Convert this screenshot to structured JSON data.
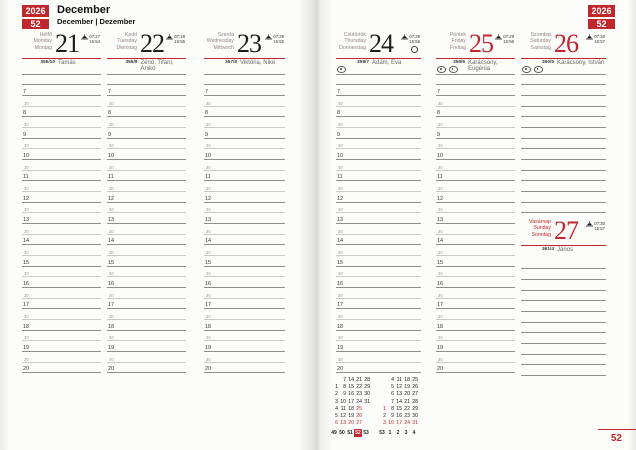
{
  "header": {
    "year": "2026",
    "week": "52",
    "month": "December",
    "month_subtitle": "December | Dezember"
  },
  "page_number": "52",
  "days": [
    {
      "name_hu": "Hétfő",
      "name_en": "Monday",
      "name_de": "Montag",
      "date": "21",
      "sunrise": "07:27",
      "sunset": "15:54",
      "day_of_year": "355/10",
      "namedays": "Tamás",
      "holiday": false
    },
    {
      "name_hu": "Kedd",
      "name_en": "Tuesday",
      "name_de": "Dienstag",
      "date": "22",
      "sunrise": "07:28",
      "sunset": "15:55",
      "day_of_year": "356/9",
      "namedays": "Zénó, Tifani, Anikó",
      "holiday": false
    },
    {
      "name_hu": "Szerda",
      "name_en": "Wednesday",
      "name_de": "Mittwoch",
      "date": "23",
      "sunrise": "07:29",
      "sunset": "15:55",
      "day_of_year": "357/8",
      "namedays": "Viktória, Niké",
      "holiday": false
    },
    {
      "name_hu": "Csütörtök",
      "name_en": "Thursday",
      "name_de": "Donnerstag",
      "date": "24",
      "sunrise": "07:29",
      "sunset": "15:56",
      "day_of_year": "358/7",
      "namedays": "Ádám, Éva",
      "holiday": false,
      "moon_phase": "full"
    },
    {
      "name_hu": "Péntek",
      "name_en": "Friday",
      "name_de": "Freitag",
      "date": "25",
      "sunrise": "07:29",
      "sunset": "15:56",
      "day_of_year": "359/6",
      "namedays": "Karácsony, Eugénia",
      "holiday": true
    },
    {
      "name_hu": "Szombat",
      "name_en": "Saturday",
      "name_de": "Samstag",
      "date": "26",
      "sunrise": "07:30",
      "sunset": "15:57",
      "day_of_year": "360/5",
      "namedays": "Karácsony, István",
      "holiday": true
    },
    {
      "name_hu": "Vasárnap",
      "name_en": "Sunday",
      "name_de": "Sonntag",
      "date": "27",
      "sunrise": "07:30",
      "sunset": "15:57",
      "day_of_year": "361/4",
      "namedays": "János",
      "holiday": true
    }
  ],
  "schedule": {
    "hours": [
      7,
      8,
      9,
      10,
      11,
      12,
      13,
      14,
      15,
      16,
      17,
      18,
      19,
      20
    ],
    "half_label": "30"
  },
  "mini_calendar": {
    "current_week": "52",
    "months": [
      {
        "rows": [
          [
            "",
            "7",
            "14",
            "21",
            "28"
          ],
          [
            "1",
            "8",
            "15",
            "22",
            "29"
          ],
          [
            "2",
            "9",
            "16",
            "23",
            "30"
          ],
          [
            "3",
            "10",
            "17",
            "24",
            "31"
          ],
          [
            "4",
            "11",
            "18",
            "25",
            ""
          ],
          [
            "5",
            "12",
            "19",
            "26",
            ""
          ],
          [
            "6",
            "13",
            "20",
            "27",
            ""
          ]
        ],
        "week_numbers": [
          "49",
          "50",
          "51",
          "52",
          "53"
        ],
        "red_days": [
          "6",
          "13",
          "20",
          "25",
          "26",
          "27"
        ]
      },
      {
        "rows": [
          [
            "",
            "4",
            "11",
            "18",
            "25"
          ],
          [
            "",
            "5",
            "12",
            "19",
            "26"
          ],
          [
            "",
            "6",
            "13",
            "20",
            "27"
          ],
          [
            "",
            "7",
            "14",
            "21",
            "28"
          ],
          [
            "1",
            "8",
            "15",
            "22",
            "29"
          ],
          [
            "2",
            "9",
            "16",
            "23",
            "30"
          ],
          [
            "3",
            "10",
            "17",
            "24",
            "31"
          ]
        ],
        "week_numbers": [
          "53",
          "1",
          "2",
          "3",
          "4"
        ],
        "red_days": [
          "1",
          "3",
          "10",
          "17",
          "24",
          "31"
        ]
      }
    ]
  },
  "colors": {
    "accent_red": "#c1262c"
  }
}
